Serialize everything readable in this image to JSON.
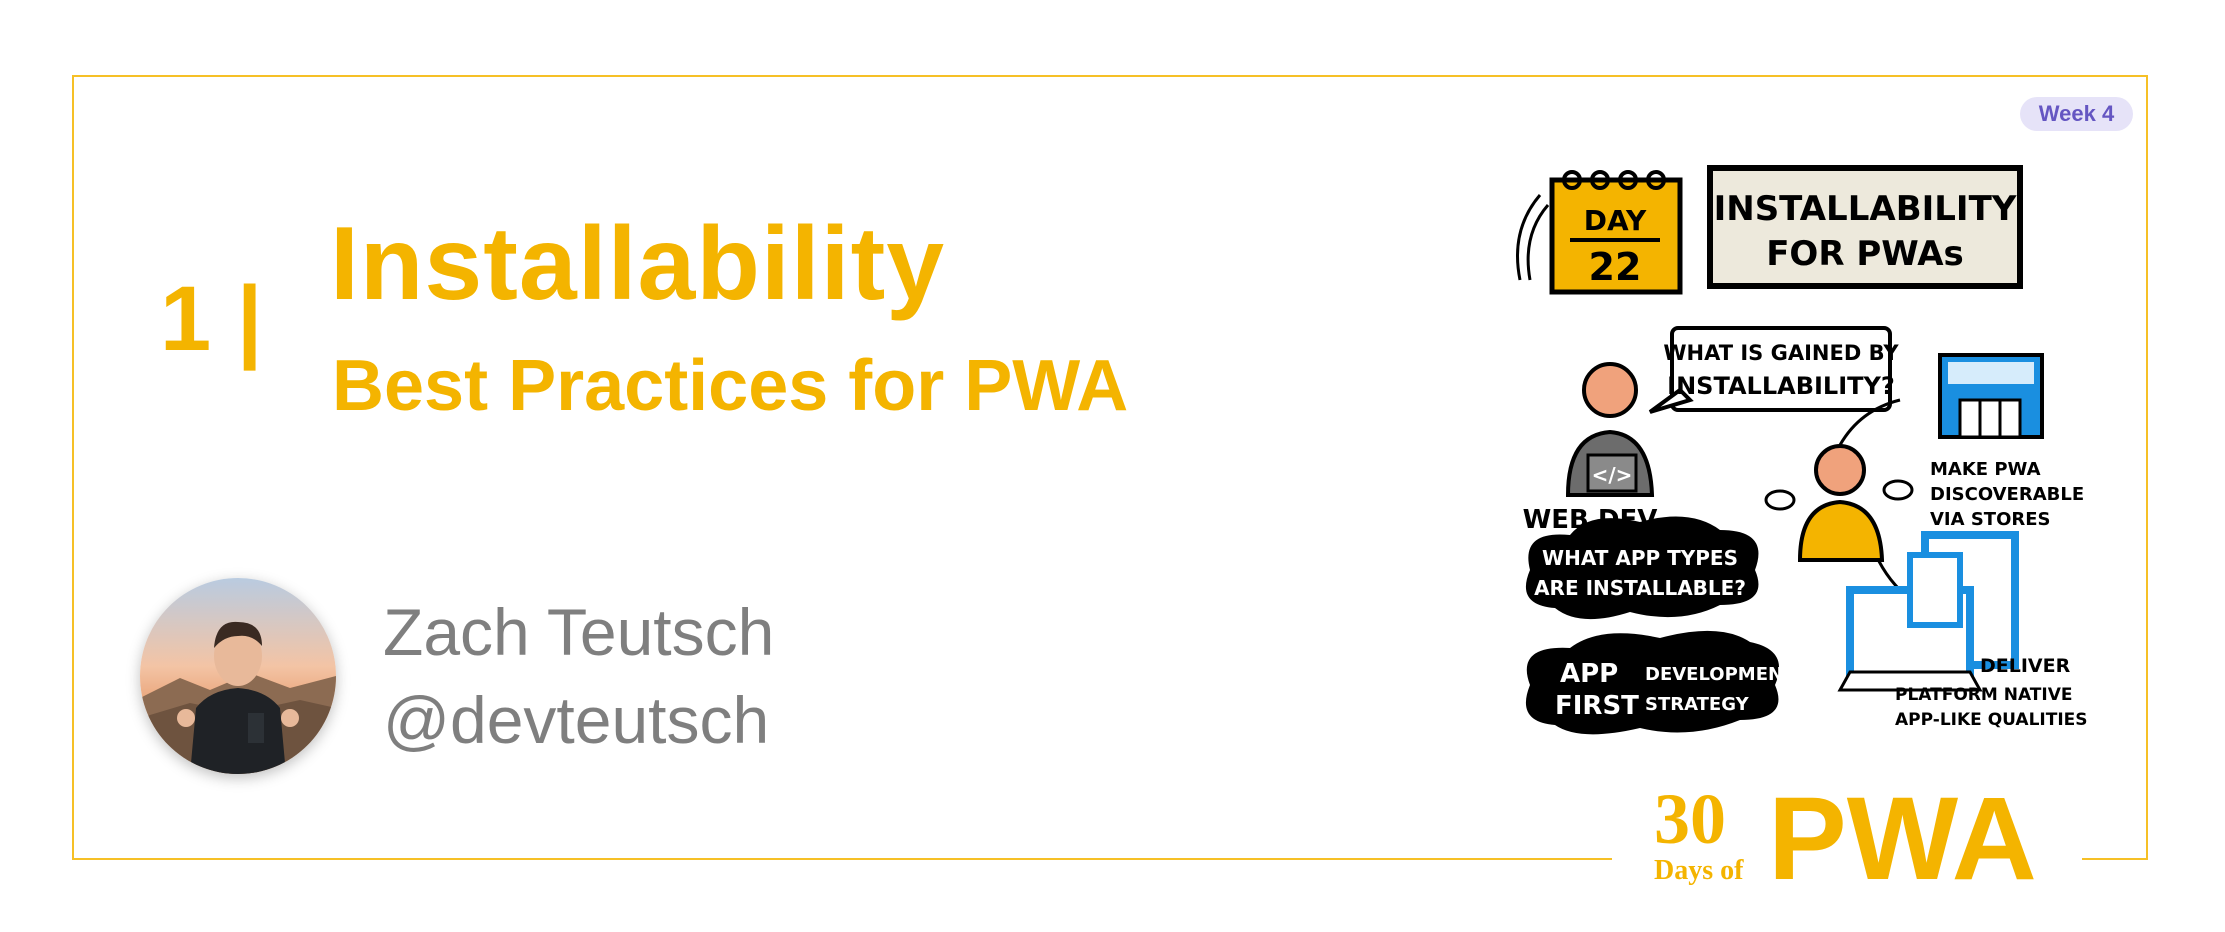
{
  "slide": {
    "number_label": "1 |",
    "title": "Installability",
    "subtitle": "Best Practices for PWA"
  },
  "author": {
    "name": "Zach Teutsch",
    "handle": "@devteutsch"
  },
  "week_badge": "Week 4",
  "sketch": {
    "calendar_top": "DAY",
    "calendar_num": "22",
    "title_line1": "INSTALLABILITY",
    "title_line2": "FOR PWAs",
    "bubble_line1": "WHAT IS GAINED BY",
    "bubble_line2": "INSTALLABILITY?",
    "web_dev": "WEB DEV",
    "store_line1": "MAKE PWA",
    "store_line2": "DISCOVERABLE",
    "store_line3": "VIA STORES",
    "cloud1_line1": "WHAT APP TYPES",
    "cloud1_line2": "ARE INSTALLABLE?",
    "cloud2_app": "APP",
    "cloud2_first": "FIRST",
    "cloud2_dev": "DEVELOPMENT",
    "cloud2_strategy": "STRATEGY",
    "deliver_line1": "DELIVER",
    "deliver_line2": "PLATFORM NATIVE",
    "deliver_line3": "APP-LIKE QUALITIES",
    "code_glyph": "</>"
  },
  "logo": {
    "number": "30",
    "days_of": "Days of",
    "brand": "PWA"
  },
  "colors": {
    "accent": "#f4b400",
    "frame": "#f6c026",
    "author_text": "#7f7f7f",
    "badge_bg": "#e6e3f8",
    "badge_text": "#6556c2",
    "sketch_blue": "#1a8fe0"
  }
}
